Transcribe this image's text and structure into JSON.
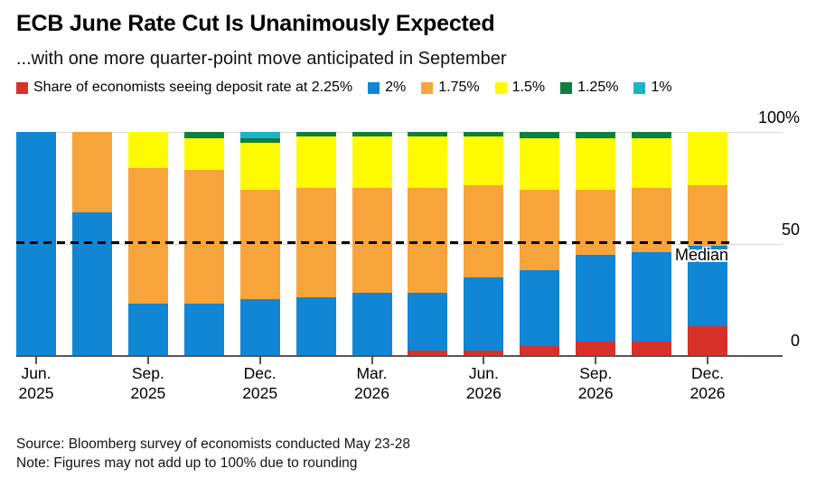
{
  "header": {
    "title": "ECB June Rate Cut Is Unanimously Expected",
    "subtitle": "...with one more quarter-point move anticipated in September"
  },
  "legend": [
    {
      "label": "Share of economists seeing deposit rate at 2.25%",
      "color": "#d8312a"
    },
    {
      "label": "2%",
      "color": "#1086d4"
    },
    {
      "label": "1.75%",
      "color": "#f7a43a"
    },
    {
      "label": "1.5%",
      "color": "#fefb00"
    },
    {
      "label": "1.25%",
      "color": "#0e7f3f"
    },
    {
      "label": "1%",
      "color": "#1cb4c9"
    }
  ],
  "chart_data": {
    "type": "bar",
    "stacked": true,
    "unit": "% share of economists",
    "bar_count": 13,
    "ylim": [
      0,
      100
    ],
    "grid": "horizontal",
    "y_ticks": [
      {
        "value": 100,
        "label": "100%"
      },
      {
        "value": 50,
        "label": "50"
      },
      {
        "value": 0,
        "label": "0"
      }
    ],
    "x_ticks": [
      {
        "bar_index": 0,
        "month": "Jun.",
        "year": "2025"
      },
      {
        "bar_index": 2,
        "month": "Sep.",
        "year": "2025"
      },
      {
        "bar_index": 4,
        "month": "Dec.",
        "year": "2025"
      },
      {
        "bar_index": 6,
        "month": "Mar.",
        "year": "2026"
      },
      {
        "bar_index": 8,
        "month": "Jun.",
        "year": "2026"
      },
      {
        "bar_index": 10,
        "month": "Sep.",
        "year": "2026"
      },
      {
        "bar_index": 12,
        "month": "Dec.",
        "year": "2026"
      }
    ],
    "median_line": {
      "label": "Median",
      "value": 50,
      "style": "dashed",
      "color": "#000000"
    },
    "series": [
      {
        "name": "2.25%",
        "color": "#d8312a",
        "values": [
          0,
          0,
          0,
          0,
          0,
          0,
          0,
          2,
          2,
          4,
          6,
          6,
          13
        ]
      },
      {
        "name": "2%",
        "color": "#1086d4",
        "values": [
          100,
          64,
          23,
          23,
          25,
          26,
          28,
          26,
          33,
          34,
          39,
          40,
          36
        ]
      },
      {
        "name": "1.75%",
        "color": "#f7a43a",
        "values": [
          0,
          36,
          61,
          60,
          49,
          49,
          47,
          47,
          41,
          36,
          29,
          29,
          27
        ]
      },
      {
        "name": "1.5%",
        "color": "#fefb00",
        "values": [
          0,
          0,
          16,
          14,
          21,
          23,
          23,
          23,
          22,
          23,
          23,
          22,
          24
        ]
      },
      {
        "name": "1.25%",
        "color": "#0e7f3f",
        "values": [
          0,
          0,
          0,
          3,
          2,
          2,
          2,
          2,
          2,
          3,
          3,
          3,
          0
        ]
      },
      {
        "name": "1%",
        "color": "#1cb4c9",
        "values": [
          0,
          0,
          0,
          0,
          3,
          0,
          0,
          0,
          0,
          0,
          0,
          0,
          0
        ]
      }
    ],
    "colors": {
      "grid": "#d9d9d9",
      "axis": "#55565a"
    }
  },
  "footer": {
    "source": "Source: Bloomberg survey of economists conducted May 23-28",
    "note": "Note: Figures may not add up to 100% due to rounding"
  }
}
